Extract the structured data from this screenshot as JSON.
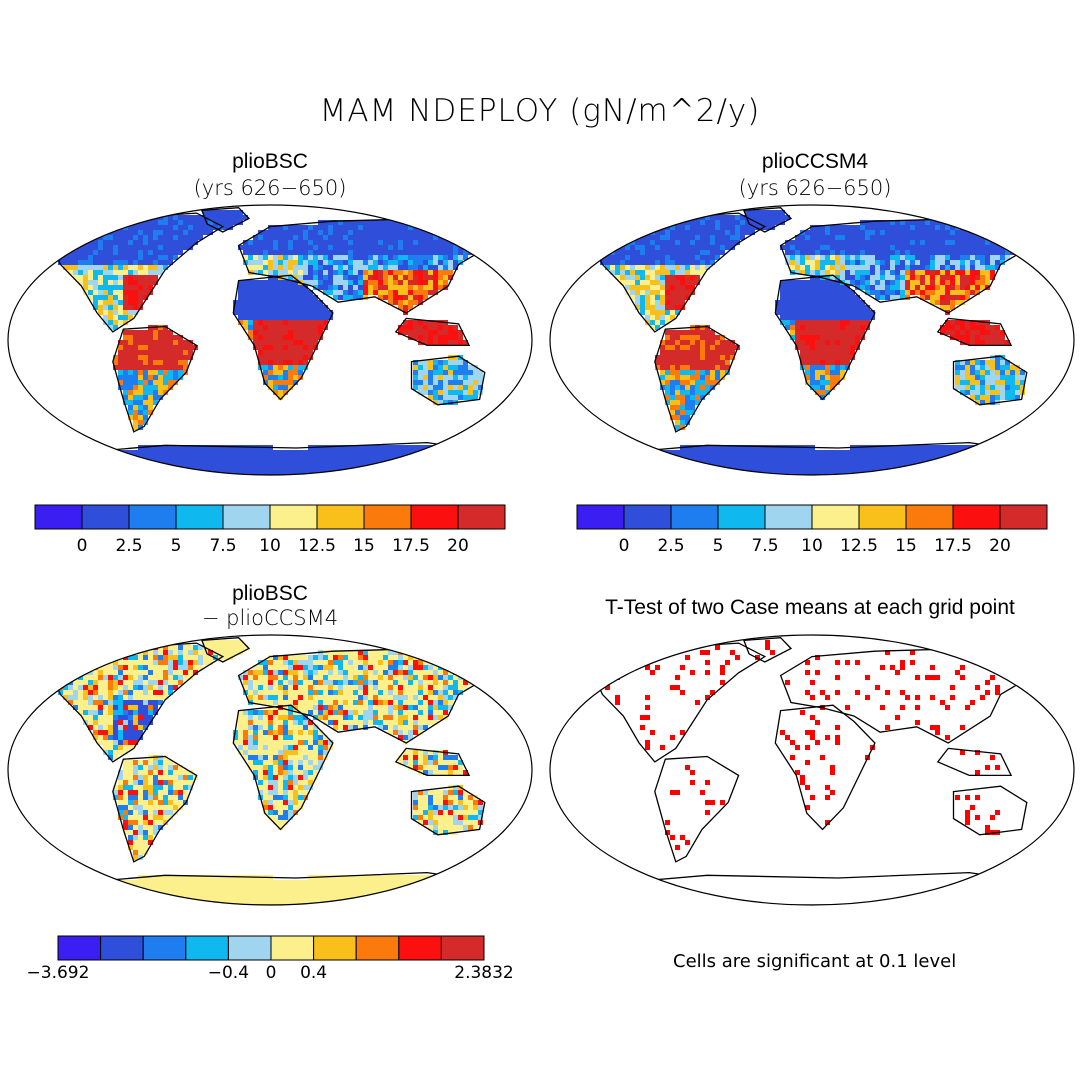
{
  "figure": {
    "title": "MAM NDEPLOY (gN/m^2/y)"
  },
  "panels": [
    {
      "title": "plioBSC",
      "subtitle": "(yrs 626−650)",
      "colorbar": {
        "colors": [
          "#3b1ff2",
          "#2f4fdb",
          "#1e7ef0",
          "#10b8f0",
          "#9fd5ee",
          "#fbf08c",
          "#f9c01c",
          "#fa7a0c",
          "#fb0f0f",
          "#d42a2a"
        ],
        "ticks": [
          "0",
          "2.5",
          "5",
          "7.5",
          "10",
          "12.5",
          "15",
          "17.5",
          "20"
        ]
      }
    },
    {
      "title": "plioCCSM4",
      "subtitle": "(yrs 626−650)",
      "colorbar": {
        "colors": [
          "#3b1ff2",
          "#2f4fdb",
          "#1e7ef0",
          "#10b8f0",
          "#9fd5ee",
          "#fbf08c",
          "#f9c01c",
          "#fa7a0c",
          "#fb0f0f",
          "#d42a2a"
        ],
        "ticks": [
          "0",
          "2.5",
          "5",
          "7.5",
          "10",
          "12.5",
          "15",
          "17.5",
          "20"
        ]
      }
    },
    {
      "title": "plioBSC",
      "subtitle": "− plioCCSM4",
      "colorbar": {
        "colors": [
          "#3b1ff2",
          "#2f4fdb",
          "#1e7ef0",
          "#10b8f0",
          "#9fd5ee",
          "#fbf08c",
          "#f9c01c",
          "#fa7a0c",
          "#fb0f0f",
          "#d42a2a"
        ],
        "ticks": [
          "−3.692",
          "−0.4",
          "0",
          "0.4",
          "2.3832"
        ]
      }
    },
    {
      "title": "T-Test of two Case means at each grid point",
      "note": "Cells are significant at 0.1 level",
      "dot_color": "#ff0000"
    }
  ]
}
